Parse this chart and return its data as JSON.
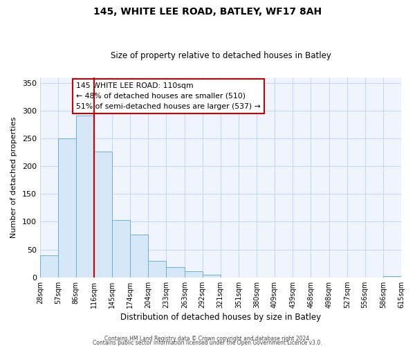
{
  "title": "145, WHITE LEE ROAD, BATLEY, WF17 8AH",
  "subtitle": "Size of property relative to detached houses in Batley",
  "xlabel": "Distribution of detached houses by size in Batley",
  "ylabel": "Number of detached properties",
  "bar_edges": [
    28,
    57,
    86,
    116,
    145,
    174,
    204,
    233,
    263,
    292,
    321,
    351,
    380,
    409,
    439,
    468,
    498,
    527,
    556,
    586,
    615
  ],
  "bar_heights": [
    39,
    250,
    291,
    226,
    103,
    77,
    29,
    18,
    11,
    4,
    0,
    0,
    0,
    0,
    0,
    0,
    0,
    0,
    0,
    2
  ],
  "bar_color": "#d6e8f7",
  "bar_edge_color": "#6aaed6",
  "vline_x": 116,
  "vline_color": "#cc0000",
  "ylim": [
    0,
    360
  ],
  "yticks": [
    0,
    50,
    100,
    150,
    200,
    250,
    300,
    350
  ],
  "annotation_title": "145 WHITE LEE ROAD: 110sqm",
  "annotation_line1": "← 48% of detached houses are smaller (510)",
  "annotation_line2": "51% of semi-detached houses are larger (537) →",
  "footer1": "Contains HM Land Registry data © Crown copyright and database right 2024.",
  "footer2": "Contains public sector information licensed under the Open Government Licence v3.0.",
  "tick_labels": [
    "28sqm",
    "57sqm",
    "86sqm",
    "116sqm",
    "145sqm",
    "174sqm",
    "204sqm",
    "233sqm",
    "263sqm",
    "292sqm",
    "321sqm",
    "351sqm",
    "380sqm",
    "409sqm",
    "439sqm",
    "468sqm",
    "498sqm",
    "527sqm",
    "556sqm",
    "586sqm",
    "615sqm"
  ],
  "grid_color": "#c8d8ec",
  "background_color": "#ffffff",
  "ax_background_color": "#f0f4fc"
}
